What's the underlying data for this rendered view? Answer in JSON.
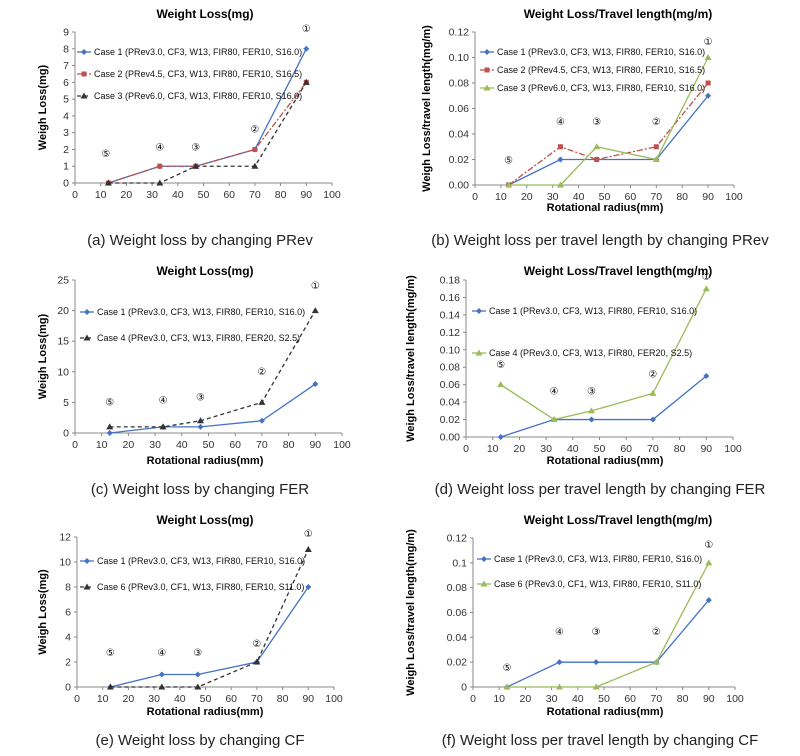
{
  "panels": [
    {
      "id": "a",
      "caption": "(a) Weight loss by changing PRev",
      "chart_data": {
        "type": "line",
        "title": "Weight Loss(mg)",
        "xlabel": "",
        "ylabel": "Weigh Loss(mg)",
        "xlim": [
          0,
          100
        ],
        "ylim": [
          0,
          9
        ],
        "xticks": [
          0,
          10,
          20,
          30,
          40,
          50,
          60,
          70,
          80,
          90,
          100
        ],
        "yticks": [
          0,
          1,
          2,
          3,
          4,
          5,
          6,
          7,
          8,
          9
        ],
        "ytick_labels": [
          "0",
          "1",
          "2",
          "3",
          "4",
          "5",
          "6",
          "7",
          "8",
          "9"
        ],
        "grid": false,
        "legend_position": "top-left",
        "series": [
          {
            "name": "Case 1 (PRev3.0, CF3, W13, FIR80, FER10, S16.0)",
            "color": "#4472c4",
            "dash": "solid",
            "marker": "diamond",
            "x": [
              13,
              33,
              47,
              70,
              90
            ],
            "y": [
              0,
              1,
              1,
              2,
              8
            ]
          },
          {
            "name": "Case 2 (PRev4.5, CF3, W13, FIR80, FER10, S16.5)",
            "color": "#c0504d",
            "dash": "dashdot",
            "marker": "square",
            "x": [
              13,
              33,
              47,
              70,
              90
            ],
            "y": [
              0,
              1,
              1,
              2,
              6
            ]
          },
          {
            "name": "Case 3 (PRev6.0, CF3, W13, FIR80, FER10, S16.0)",
            "color": "#333333",
            "dash": "dashed",
            "marker": "triangle",
            "x": [
              13,
              33,
              47,
              70,
              90
            ],
            "y": [
              0,
              0,
              1,
              1,
              6
            ]
          }
        ],
        "annotations": [
          {
            "text": "⑤",
            "x": 12,
            "y": 1.55
          },
          {
            "text": "④",
            "x": 33,
            "y": 1.95
          },
          {
            "text": "③",
            "x": 47,
            "y": 1.95
          },
          {
            "text": "②",
            "x": 70,
            "y": 3.0
          },
          {
            "text": "①",
            "x": 90,
            "y": 9.0
          }
        ]
      }
    },
    {
      "id": "b",
      "caption": "(b) Weight loss per travel length by changing PRev",
      "chart_data": {
        "type": "line",
        "title": "Weight Loss/Travel length(mg/m)",
        "xlabel": "Rotational radius(mm)",
        "ylabel": "Weigh Loss/travel length(mg/m)",
        "xlim": [
          0,
          100
        ],
        "ylim": [
          0,
          0.12
        ],
        "xticks": [
          0,
          10,
          20,
          30,
          40,
          50,
          60,
          70,
          80,
          90,
          100
        ],
        "yticks": [
          0,
          0.02,
          0.04,
          0.06,
          0.08,
          0.1,
          0.12
        ],
        "ytick_labels": [
          "0.00",
          "0.02",
          "0.04",
          "0.06",
          "0.08",
          "0.10",
          "0.12"
        ],
        "grid": false,
        "legend_position": "top-left",
        "series": [
          {
            "name": "Case 1 (PRev3.0, CF3, W13, FIR80, FER10, S16.0)",
            "color": "#4472c4",
            "dash": "solid",
            "marker": "diamond",
            "x": [
              13,
              33,
              47,
              70,
              90
            ],
            "y": [
              0,
              0.02,
              0.02,
              0.02,
              0.07
            ]
          },
          {
            "name": "Case 2 (PRev4.5, CF3, W13, FIR80, FER10, S16.5)",
            "color": "#c0504d",
            "dash": "dashdot",
            "marker": "square",
            "x": [
              13,
              33,
              47,
              70,
              90
            ],
            "y": [
              0,
              0.03,
              0.02,
              0.03,
              0.08
            ]
          },
          {
            "name": "Case 3 (PRev6.0, CF3, W13, FIR80, FER10, S16.0)",
            "color": "#9bbb59",
            "dash": "solid",
            "marker": "triangle",
            "x": [
              13,
              33,
              47,
              70,
              90
            ],
            "y": [
              0,
              0,
              0.03,
              0.02,
              0.1
            ]
          }
        ],
        "annotations": [
          {
            "text": "⑤",
            "x": 13,
            "y": 0.017
          },
          {
            "text": "④",
            "x": 33,
            "y": 0.047
          },
          {
            "text": "③",
            "x": 47,
            "y": 0.047
          },
          {
            "text": "②",
            "x": 70,
            "y": 0.047
          },
          {
            "text": "①",
            "x": 90,
            "y": 0.11
          }
        ]
      }
    },
    {
      "id": "c",
      "caption": "(c) Weight loss by changing FER",
      "chart_data": {
        "type": "line",
        "title": "Weight Loss(mg)",
        "xlabel": "Rotational radius(mm)",
        "ylabel": "Weigh Loss(mg)",
        "xlim": [
          0,
          100
        ],
        "ylim": [
          0,
          25
        ],
        "xticks": [
          0,
          10,
          20,
          30,
          40,
          50,
          60,
          70,
          80,
          90,
          100
        ],
        "yticks": [
          0,
          5,
          10,
          15,
          20,
          25
        ],
        "ytick_labels": [
          "0",
          "5",
          "10",
          "15",
          "20",
          "25"
        ],
        "grid": false,
        "legend_position": "top-left",
        "series": [
          {
            "name": "Case 1 (PRev3.0, CF3, W13, FIR80, FER10, S16.0)",
            "color": "#4472c4",
            "dash": "solid",
            "marker": "diamond",
            "x": [
              13,
              33,
              47,
              70,
              90
            ],
            "y": [
              0,
              1,
              1,
              2,
              8
            ]
          },
          {
            "name": "Case 4 (PRev3.0, CF3, W13, FIR80, FER20, S2.5)",
            "color": "#333333",
            "dash": "dashed",
            "marker": "triangle",
            "x": [
              13,
              33,
              47,
              70,
              90
            ],
            "y": [
              1,
              1,
              2,
              5,
              20
            ]
          }
        ],
        "annotations": [
          {
            "text": "⑤",
            "x": 13,
            "y": 4.5
          },
          {
            "text": "④",
            "x": 33,
            "y": 4.8
          },
          {
            "text": "③",
            "x": 47,
            "y": 5.3
          },
          {
            "text": "②",
            "x": 70,
            "y": 9.5
          },
          {
            "text": "①",
            "x": 90,
            "y": 23.5
          }
        ]
      }
    },
    {
      "id": "d",
      "caption": "(d) Weight loss per travel length by changing FER",
      "chart_data": {
        "type": "line",
        "title": "Weight Loss/Travel length(mg/m)",
        "xlabel": "Rotational radius(mm)",
        "ylabel": "Weigh Loss/travel length(mg/m)",
        "xlim": [
          0,
          100
        ],
        "ylim": [
          0,
          0.18
        ],
        "xticks": [
          0,
          10,
          20,
          30,
          40,
          50,
          60,
          70,
          80,
          90,
          100
        ],
        "yticks": [
          0,
          0.02,
          0.04,
          0.06,
          0.08,
          0.1,
          0.12,
          0.14,
          0.16,
          0.18
        ],
        "ytick_labels": [
          "0.00",
          "0.02",
          "0.04",
          "0.06",
          "0.08",
          "0.10",
          "0.12",
          "0.14",
          "0.16",
          "0.18"
        ],
        "grid": false,
        "legend_position": "top-left",
        "series": [
          {
            "name": "Case 1 (PRev3.0, CF3, W13, FIR80, FER10, S16.0)",
            "color": "#4472c4",
            "dash": "solid",
            "marker": "diamond",
            "x": [
              13,
              33,
              47,
              70,
              90
            ],
            "y": [
              0,
              0.02,
              0.02,
              0.02,
              0.07
            ]
          },
          {
            "name": "Case 4 (PRev3.0, CF3, W13, FIR80, FER20, S2.5)",
            "color": "#9bbb59",
            "dash": "solid",
            "marker": "triangle",
            "x": [
              13,
              33,
              47,
              70,
              90
            ],
            "y": [
              0.06,
              0.02,
              0.03,
              0.05,
              0.17
            ]
          }
        ],
        "annotations": [
          {
            "text": "⑤",
            "x": 13,
            "y": 0.079
          },
          {
            "text": "④",
            "x": 33,
            "y": 0.049
          },
          {
            "text": "③",
            "x": 47,
            "y": 0.049
          },
          {
            "text": "②",
            "x": 70,
            "y": 0.068
          },
          {
            "text": "①",
            "x": 90,
            "y": 0.18
          }
        ]
      }
    },
    {
      "id": "e",
      "caption": "(e) Weight loss by changing CF",
      "chart_data": {
        "type": "line",
        "title": "Weight Loss(mg)",
        "xlabel": "Rotational radius(mm)",
        "ylabel": "Weigh Loss(mg)",
        "xlim": [
          0,
          100
        ],
        "ylim": [
          0,
          12
        ],
        "xticks": [
          0,
          10,
          20,
          30,
          40,
          50,
          60,
          70,
          80,
          90,
          100
        ],
        "yticks": [
          0,
          2,
          4,
          6,
          8,
          10,
          12
        ],
        "ytick_labels": [
          "0",
          "2",
          "4",
          "6",
          "8",
          "10",
          "12"
        ],
        "grid": false,
        "legend_position": "top-left",
        "series": [
          {
            "name": "Case 1 (PRev3.0, CF3, W13, FIR80, FER10, S16.0)",
            "color": "#4472c4",
            "dash": "solid",
            "marker": "diamond",
            "x": [
              13,
              33,
              47,
              70,
              90
            ],
            "y": [
              0,
              1,
              1,
              2,
              8
            ]
          },
          {
            "name": "Case 6 (PRev3.0, CF1, W13, FIR80, FER10, S11.0)",
            "color": "#333333",
            "dash": "dashed",
            "marker": "triangle",
            "x": [
              13,
              33,
              47,
              70,
              90
            ],
            "y": [
              0,
              0,
              0,
              2,
              11
            ]
          }
        ],
        "annotations": [
          {
            "text": "⑤",
            "x": 13,
            "y": 2.5
          },
          {
            "text": "④",
            "x": 33,
            "y": 2.5
          },
          {
            "text": "③",
            "x": 47,
            "y": 2.5
          },
          {
            "text": "②",
            "x": 70,
            "y": 3.2
          },
          {
            "text": "①",
            "x": 90,
            "y": 12.0
          }
        ]
      }
    },
    {
      "id": "f",
      "caption": "(f) Weight loss per travel length by changing CF",
      "chart_data": {
        "type": "line",
        "title": "Weight Loss/Travel length(mg/m)",
        "xlabel": "Rotational radius(mm)",
        "ylabel": "Weigh Loss/travel length(mg/m)",
        "xlim": [
          0,
          100
        ],
        "ylim": [
          0,
          0.12
        ],
        "xticks": [
          0,
          10,
          20,
          30,
          40,
          50,
          60,
          70,
          80,
          90,
          100
        ],
        "yticks": [
          0,
          0.02,
          0.04,
          0.06,
          0.08,
          0.1,
          0.12
        ],
        "ytick_labels": [
          "0",
          "0.02",
          "0.04",
          "0.06",
          "0.08",
          "0.1",
          "0.12"
        ],
        "grid": false,
        "legend_position": "top-left",
        "series": [
          {
            "name": "Case 1 (PRev3.0, CF3, W13, FIR80, FER10, S16.0)",
            "color": "#4472c4",
            "dash": "solid",
            "marker": "diamond",
            "x": [
              13,
              33,
              47,
              70,
              90
            ],
            "y": [
              0,
              0.02,
              0.02,
              0.02,
              0.07
            ]
          },
          {
            "name": "Case 6 (PRev3.0, CF1, W13, FIR80, FER10, S11.0)",
            "color": "#9bbb59",
            "dash": "solid",
            "marker": "triangle",
            "x": [
              13,
              33,
              47,
              70,
              90
            ],
            "y": [
              0,
              0,
              0,
              0.02,
              0.1
            ]
          }
        ],
        "annotations": [
          {
            "text": "⑤",
            "x": 13,
            "y": 0.013
          },
          {
            "text": "④",
            "x": 33,
            "y": 0.042
          },
          {
            "text": "③",
            "x": 47,
            "y": 0.042
          },
          {
            "text": "②",
            "x": 70,
            "y": 0.042
          },
          {
            "text": "①",
            "x": 90,
            "y": 0.112
          }
        ]
      }
    }
  ]
}
